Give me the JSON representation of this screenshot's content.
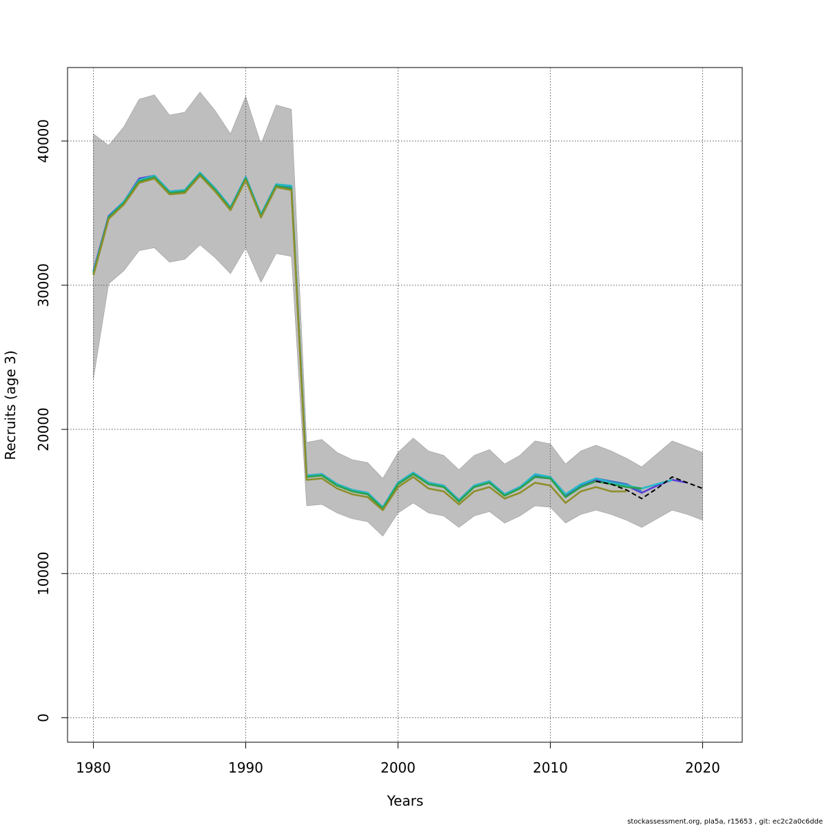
{
  "chart_data": {
    "type": "line",
    "xlabel": "Years",
    "ylabel": "Recruits (age 3)",
    "xlim": [
      1978.3,
      2022.6
    ],
    "ylim": [
      -1700,
      45100
    ],
    "x_ticks": [
      "1980",
      "1990",
      "2000",
      "2010",
      "2020"
    ],
    "y_ticks": [
      "0",
      "10000",
      "20000",
      "30000",
      "40000"
    ],
    "grid": true,
    "band": {
      "x": [
        1980,
        1981,
        1982,
        1983,
        1984,
        1985,
        1986,
        1987,
        1988,
        1989,
        1990,
        1991,
        1992,
        1993,
        1994,
        1995,
        1996,
        1997,
        1998,
        1999,
        2000,
        2001,
        2002,
        2003,
        2004,
        2005,
        2006,
        2007,
        2008,
        2009,
        2010,
        2011,
        2012,
        2013,
        2014,
        2015,
        2016,
        2017,
        2018,
        2019,
        2020
      ],
      "upper": [
        40500,
        39700,
        41000,
        42900,
        43200,
        41800,
        42000,
        43400,
        42100,
        40500,
        43100,
        39800,
        42500,
        42200,
        19100,
        19300,
        18400,
        17900,
        17700,
        16600,
        18400,
        19400,
        18500,
        18200,
        17200,
        18200,
        18600,
        17600,
        18200,
        19200,
        19000,
        17600,
        18500,
        18900,
        18500,
        18000,
        17400,
        18300,
        19200,
        18800,
        18400
      ],
      "lower": [
        23500,
        30100,
        31000,
        32400,
        32600,
        31600,
        31800,
        32800,
        31900,
        30800,
        32600,
        30200,
        32200,
        32000,
        14700,
        14800,
        14200,
        13800,
        13600,
        12600,
        14200,
        14900,
        14200,
        14000,
        13200,
        14000,
        14300,
        13500,
        14000,
        14700,
        14600,
        13500,
        14100,
        14400,
        14100,
        13700,
        13200,
        13800,
        14400,
        14100,
        13700
      ]
    },
    "series": [
      {
        "color": "#5b3fd6",
        "dash": false,
        "x": [
          1980,
          1981,
          1982,
          1983,
          1984,
          1985,
          1986,
          1987,
          1988,
          1989,
          1990,
          1991,
          1992,
          1993,
          1994,
          1995,
          1996,
          1997,
          1998,
          1999,
          2000,
          2001,
          2002,
          2003,
          2004,
          2005,
          2006,
          2007,
          2008,
          2009,
          2010,
          2011,
          2012,
          2013,
          2014,
          2015,
          2016,
          2017,
          2018,
          2019
        ],
        "y": [
          31000,
          34800,
          35800,
          37400,
          37600,
          36500,
          36600,
          37800,
          36700,
          35400,
          37500,
          34900,
          37000,
          36800,
          16800,
          16900,
          16200,
          15800,
          15600,
          14600,
          16300,
          17000,
          16300,
          16100,
          15100,
          16100,
          16400,
          15500,
          16000,
          16700,
          16600,
          15400,
          16100,
          16500,
          16300,
          16100,
          15600,
          16100,
          16500,
          16300
        ]
      },
      {
        "color": "#3a78c8",
        "dash": false,
        "x": [
          1980,
          1981,
          1982,
          1983,
          1984,
          1985,
          1986,
          1987,
          1988,
          1989,
          1990,
          1991,
          1992,
          1993,
          1994,
          1995,
          1996,
          1997,
          1998,
          1999,
          2000,
          2001,
          2002,
          2003,
          2004,
          2005,
          2006,
          2007,
          2008,
          2009,
          2010,
          2011,
          2012,
          2013,
          2014,
          2015,
          2016
        ],
        "y": [
          30900,
          34800,
          35800,
          37300,
          37600,
          36500,
          36600,
          37800,
          36700,
          35400,
          37500,
          34900,
          37000,
          36800,
          16800,
          16900,
          16200,
          15800,
          15600,
          14600,
          16300,
          17000,
          16300,
          16100,
          15100,
          16100,
          16400,
          15500,
          16000,
          16800,
          16700,
          15500,
          16100,
          16600,
          16400,
          16200,
          15700
        ]
      },
      {
        "color": "#26b8c9",
        "dash": false,
        "x": [
          1980,
          1981,
          1982,
          1983,
          1984,
          1985,
          1986,
          1987,
          1988,
          1989,
          1990,
          1991,
          1992,
          1993,
          1994,
          1995,
          1996,
          1997,
          1998,
          1999,
          2000,
          2001,
          2002,
          2003,
          2004,
          2005,
          2006,
          2007,
          2008,
          2009,
          2010,
          2011,
          2012,
          2013,
          2014,
          2015,
          2016,
          2017,
          2018
        ],
        "y": [
          30900,
          34700,
          35800,
          37300,
          37600,
          36500,
          36600,
          37800,
          36700,
          35400,
          37500,
          34900,
          37000,
          36900,
          16800,
          16900,
          16200,
          15800,
          15600,
          14600,
          16300,
          17000,
          16300,
          16100,
          15100,
          16100,
          16400,
          15500,
          16000,
          16900,
          16700,
          15500,
          16200,
          16600,
          16300,
          16100,
          15900,
          16200,
          16500
        ]
      },
      {
        "color": "#2aa14a",
        "dash": false,
        "x": [
          1980,
          1981,
          1982,
          1983,
          1984,
          1985,
          1986,
          1987,
          1988,
          1989,
          1990,
          1991,
          1992,
          1993,
          1994,
          1995,
          1996,
          1997,
          1998,
          1999,
          2000,
          2001,
          2002,
          2003,
          2004,
          2005,
          2006,
          2007,
          2008,
          2009,
          2010,
          2011,
          2012,
          2013,
          2014,
          2015,
          2016
        ],
        "y": [
          30800,
          34700,
          35700,
          37200,
          37500,
          36400,
          36500,
          37700,
          36600,
          35300,
          37400,
          34800,
          36900,
          36700,
          16700,
          16800,
          16100,
          15700,
          15500,
          14500,
          16200,
          16900,
          16200,
          16000,
          15000,
          16000,
          16300,
          15400,
          15900,
          16700,
          16600,
          15300,
          16000,
          16400,
          16200,
          16000,
          15900
        ]
      },
      {
        "color": "#8e8e2a",
        "dash": false,
        "x": [
          1980,
          1981,
          1982,
          1983,
          1984,
          1985,
          1986,
          1987,
          1988,
          1989,
          1990,
          1991,
          1992,
          1993,
          1994,
          1995,
          1996,
          1997,
          1998,
          1999,
          2000,
          2001,
          2002,
          2003,
          2004,
          2005,
          2006,
          2007,
          2008,
          2009,
          2010,
          2011,
          2012,
          2013,
          2014,
          2015
        ],
        "y": [
          30700,
          34600,
          35600,
          37100,
          37400,
          36300,
          36400,
          37600,
          36500,
          35200,
          37300,
          34700,
          36800,
          36600,
          16500,
          16600,
          15900,
          15500,
          15300,
          14400,
          16000,
          16700,
          15900,
          15700,
          14800,
          15700,
          16000,
          15200,
          15600,
          16300,
          16100,
          14900,
          15700,
          16000,
          15700,
          15700
        ]
      },
      {
        "color": "#000000",
        "dash": true,
        "x": [
          2013,
          2014,
          2015,
          2016,
          2017,
          2018,
          2019,
          2020
        ],
        "y": [
          16400,
          16200,
          15800,
          15200,
          15900,
          16700,
          16300,
          15900
        ]
      }
    ]
  },
  "footer": "stockassessment.org, pla5a, r15653 , git: ec2c2a0c6dde"
}
